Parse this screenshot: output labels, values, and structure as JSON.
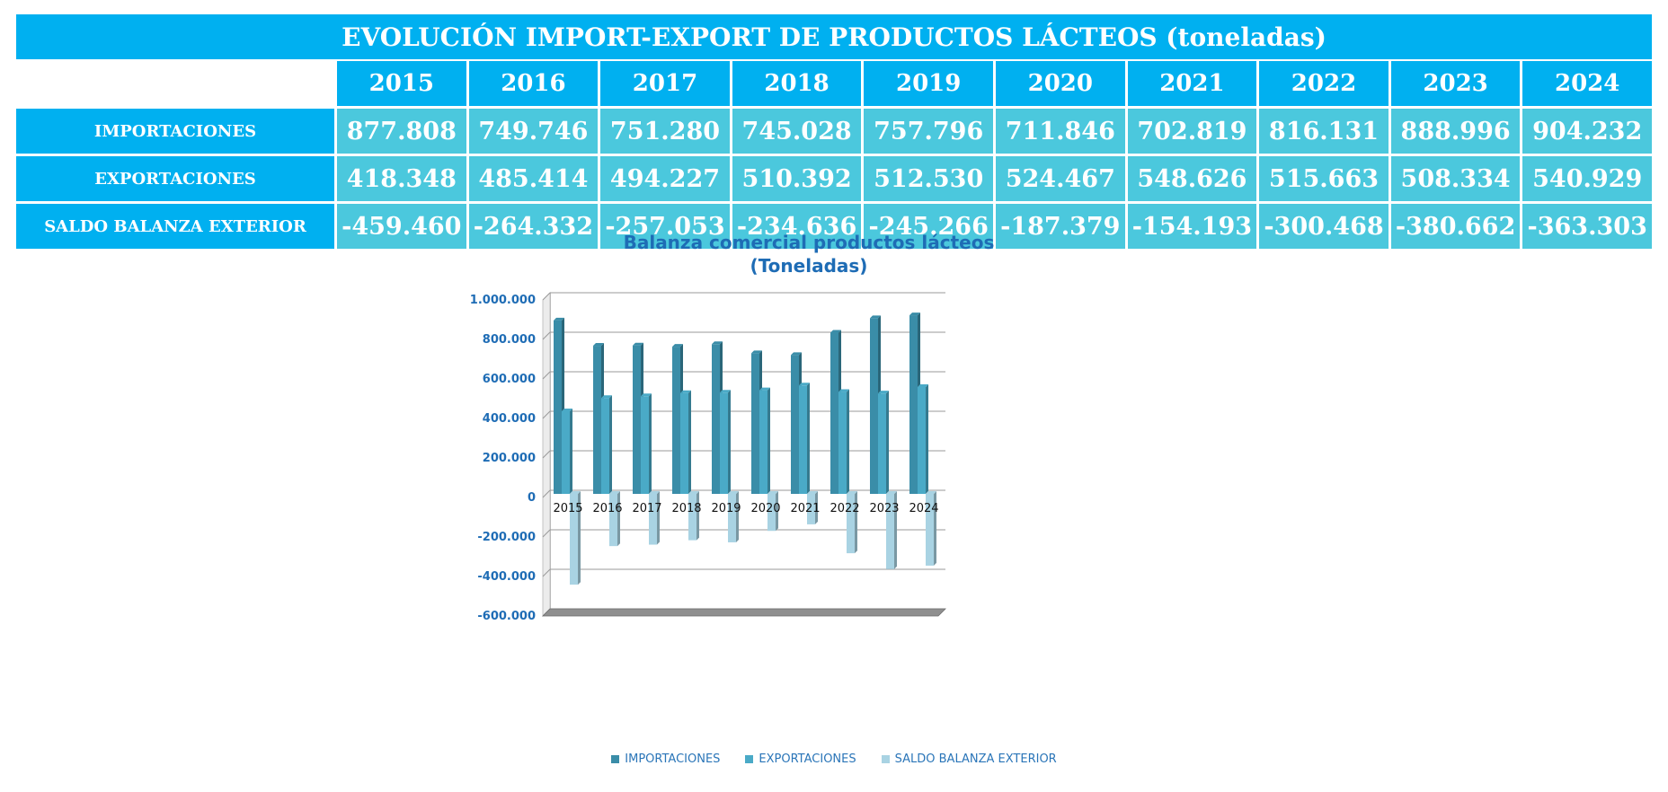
{
  "table": {
    "title": "EVOLUCIÓN IMPORT-EXPORT DE PRODUCTOS LÁCTEOS (toneladas)",
    "years": [
      "2015",
      "2016",
      "2017",
      "2018",
      "2019",
      "2020",
      "2021",
      "2022",
      "2023",
      "2024"
    ],
    "rows": [
      {
        "label": "IMPORTACIONES",
        "values": [
          "877.808",
          "749.746",
          "751.280",
          "745.028",
          "757.796",
          "711.846",
          "702.819",
          "816.131",
          "888.996",
          "904.232"
        ]
      },
      {
        "label": "EXPORTACIONES",
        "values": [
          "418.348",
          "485.414",
          "494.227",
          "510.392",
          "512.530",
          "524.467",
          "548.626",
          "515.663",
          "508.334",
          "540.929"
        ]
      },
      {
        "label": "SALDO BALANZA EXTERIOR",
        "values": [
          "-459.460",
          "-264.332",
          "-257.053",
          "-234.636",
          "-245.266",
          "-187.379",
          "-154.193",
          "-300.468",
          "-380.662",
          "-363.303"
        ]
      }
    ]
  },
  "chart_data": {
    "type": "bar",
    "title": "Balanza comercial productos lácteos",
    "subtitle": "(Toneladas)",
    "categories": [
      "2015",
      "2016",
      "2017",
      "2018",
      "2019",
      "2020",
      "2021",
      "2022",
      "2023",
      "2024"
    ],
    "series": [
      {
        "name": "IMPORTACIONES",
        "color": "#3a8da8",
        "values": [
          877808,
          749746,
          751280,
          745028,
          757796,
          711846,
          702819,
          816131,
          888996,
          904232
        ]
      },
      {
        "name": "EXPORTACIONES",
        "color": "#4aaac7",
        "values": [
          418348,
          485414,
          494227,
          510392,
          512530,
          524467,
          548626,
          515663,
          508334,
          540929
        ]
      },
      {
        "name": "SALDO BALANZA EXTERIOR",
        "color": "#a9d3e3",
        "values": [
          -459460,
          -264332,
          -257053,
          -234636,
          -245266,
          -187379,
          -154193,
          -300468,
          -380662,
          -363303
        ]
      }
    ],
    "ylim": [
      -600000,
      1000000
    ],
    "yticks": [
      1000000,
      800000,
      600000,
      400000,
      200000,
      0,
      -200000,
      -400000,
      -600000
    ],
    "ytick_labels": [
      "1.000.000",
      "800.000",
      "600.000",
      "400.000",
      "200.000",
      "0",
      "-200.000",
      "-400.000",
      "-600.000"
    ],
    "grid": true,
    "legend_position": "bottom"
  }
}
